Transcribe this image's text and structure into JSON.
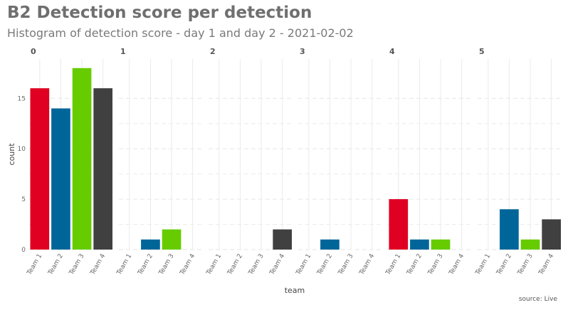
{
  "title": "B2 Detection score per detection",
  "subtitle": "Histogram of detection score - day 1 and day 2 - 2021-02-02",
  "caption": "source: Live",
  "chart_data": {
    "type": "bar",
    "facet_by": "detection score",
    "facets": [
      "0",
      "1",
      "2",
      "3",
      "4",
      "5"
    ],
    "categories": [
      "Team 1",
      "Team 2",
      "Team 3",
      "Team 4"
    ],
    "colors": [
      "#df0022",
      "#006699",
      "#66cc00",
      "#404040"
    ],
    "values": [
      [
        16,
        14,
        18,
        16
      ],
      [
        0,
        1,
        2,
        0
      ],
      [
        0,
        0,
        0,
        2
      ],
      [
        0,
        1,
        0,
        0
      ],
      [
        5,
        1,
        1,
        0
      ],
      [
        0,
        4,
        1,
        3
      ]
    ],
    "xlabel": "team",
    "ylabel": "count",
    "yticks": [
      0,
      5,
      10,
      15
    ],
    "ylim": [
      0,
      18.9
    ],
    "grid": true,
    "legend": "none"
  }
}
